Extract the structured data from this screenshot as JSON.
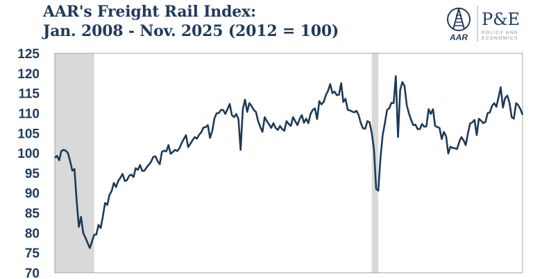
{
  "title_line1": "AAR's Freight Rail Index:",
  "title_line2": "Jan. 2008 - Nov. 2025 (2012 = 100)",
  "logo": {
    "aar_text": "AAR",
    "pe_text": "P&E",
    "pe_sub1": "POLICY AND",
    "pe_sub2": "ECONOMICS"
  },
  "colors": {
    "line": "#1c3a57",
    "shade": "#d9d9d9",
    "text": "#1e3a5c",
    "border": "#a0a0a0"
  },
  "chart_data": {
    "type": "line",
    "title": "AAR's Freight Rail Index: Jan. 2008 - Nov. 2025 (2012 = 100)",
    "x_start": "2008-01",
    "x_end": "2025-11",
    "x_frequency": "monthly",
    "ylim": [
      70,
      125
    ],
    "yticks": [
      "125",
      "120",
      "115",
      "110",
      "105",
      "100",
      "95",
      "90",
      "85",
      "80",
      "75",
      "70"
    ],
    "grid": false,
    "shaded_periods": [
      {
        "start": "2008-01",
        "end": "2009-06"
      },
      {
        "start": "2020-02",
        "end": "2020-04"
      }
    ],
    "values": [
      98.8,
      99.3,
      98.2,
      100.5,
      100.8,
      100.6,
      100.0,
      98,
      95.6,
      96,
      88,
      81.5,
      84,
      80,
      78.8,
      77.5,
      76.2,
      77.8,
      79.5,
      79.6,
      82,
      81.2,
      84.2,
      87.5,
      87,
      89.5,
      90.5,
      92.5,
      91.5,
      93,
      93.8,
      94.8,
      93,
      93.2,
      94.3,
      94.6,
      94,
      96.2,
      95.8,
      97,
      95.5,
      95.6,
      96.4,
      97.1,
      97.8,
      99,
      99.2,
      98,
      97.2,
      100.3,
      100.6,
      100.4,
      102,
      99.8,
      100.3,
      100.8,
      100.5,
      101.2,
      102.5,
      103.5,
      104.5,
      101.5,
      102.3,
      103.2,
      104,
      103.6,
      104.6,
      105.2,
      106.4,
      106.5,
      107,
      103.8,
      105.5,
      108.6,
      110,
      110,
      110.8,
      110.8,
      109.8,
      111,
      112.3,
      109.5,
      109,
      109.8,
      108.5,
      100.8,
      111,
      113.4,
      110.3,
      112.5,
      111.8,
      110.8,
      110.3,
      108,
      106.5,
      105.3,
      109,
      108,
      107.2,
      106.3,
      107.5,
      106.3,
      105.8,
      106.8,
      106,
      105.6,
      108,
      107.3,
      106.8,
      109,
      108,
      107,
      108.5,
      109.5,
      107.6,
      108.6,
      107.5,
      109.8,
      110.8,
      111.2,
      108.5,
      113,
      112.2,
      112.8,
      114.5,
      115.6,
      117.3,
      115,
      115.4,
      114.5,
      114.6,
      117.5,
      112.8,
      113.6,
      110.8,
      110.7,
      110.4,
      110.2,
      110.6,
      109.5,
      107.5,
      106.2,
      106.1,
      108,
      107.7,
      105,
      101,
      91,
      90.6,
      99,
      104.5,
      107.5,
      110.8,
      111.2,
      112.6,
      112.5,
      119.3,
      104,
      115.8,
      117.8,
      116.8,
      112,
      110,
      108.3,
      107,
      107.1,
      106,
      106,
      107.3,
      106.6,
      106.7,
      111,
      109.8,
      111,
      106.8,
      106.5,
      106.3,
      103.5,
      105.3,
      104.2,
      99.9,
      101.6,
      101.3,
      101.2,
      101,
      102.8,
      104,
      103.2,
      102,
      105,
      107.4,
      107.7,
      108.3,
      104.5,
      108.6,
      108.1,
      107.5,
      107.8,
      110,
      110.2,
      111.8,
      112.5,
      111.6,
      114,
      116.5,
      111.4,
      113.8,
      114.4,
      112.6,
      109,
      108.6,
      112.5,
      112,
      111,
      109.6
    ]
  }
}
